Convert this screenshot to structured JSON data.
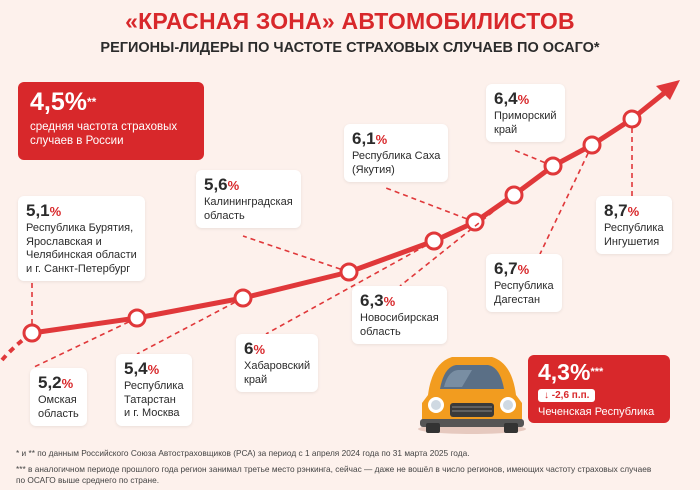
{
  "title": "«КРАСНАЯ ЗОНА» АВТОМОБИЛИСТОВ",
  "subtitle": "РЕГИОНЫ-ЛИДЕРЫ ПО ЧАСТОТЕ СТРАХОВЫХ СЛУЧАЕВ ПО ОСАГО*",
  "average": {
    "value": "4,5%",
    "mark": "**",
    "desc1": "средняя частота страховых",
    "desc2": "случаев в России"
  },
  "chechnya": {
    "value": "4,3%",
    "mark": "***",
    "change": "↓ -2,6 п.п.",
    "name": "Чеченская Республика"
  },
  "colors": {
    "accent": "#d8282b",
    "line": "#e0383a",
    "background": "#fdf1ec"
  },
  "chart_data": {
    "type": "line",
    "title": "«КРАСНАЯ ЗОНА» АВТОМОБИЛИСТОВ",
    "subtitle": "РЕГИОНЫ-ЛИДЕРЫ ПО ЧАСТОТЕ СТРАХОВЫХ СЛУЧАЕВ ПО ОСАГО*",
    "unit": "%",
    "points": [
      {
        "num": "5,1",
        "value": 5.1,
        "lines": [
          "Республика Бурятия,",
          "Ярославская и",
          "Челябинская области",
          "и г. Санкт-Петербург"
        ]
      },
      {
        "num": "5,2",
        "value": 5.2,
        "lines": [
          "Омская",
          "область"
        ]
      },
      {
        "num": "5,4",
        "value": 5.4,
        "lines": [
          "Республика",
          "Татарстан",
          "и г. Москва"
        ]
      },
      {
        "num": "5,6",
        "value": 5.6,
        "lines": [
          "Калининградская",
          "область"
        ]
      },
      {
        "num": "6",
        "value": 6.0,
        "lines": [
          "Хабаровский",
          "край"
        ]
      },
      {
        "num": "6,1",
        "value": 6.1,
        "lines": [
          "Республика Саха",
          "(Якутия)"
        ]
      },
      {
        "num": "6,3",
        "value": 6.3,
        "lines": [
          "Новосибирская",
          "область"
        ]
      },
      {
        "num": "6,4",
        "value": 6.4,
        "lines": [
          "Приморский",
          "край"
        ]
      },
      {
        "num": "6,7",
        "value": 6.7,
        "lines": [
          "Республика",
          "Дагестан"
        ]
      },
      {
        "num": "8,7",
        "value": 8.7,
        "lines": [
          "Республика",
          "Ингушетия"
        ]
      }
    ]
  },
  "footnotes": {
    "f1": "* и ** по данным Российского Союза Автостраховщиков (РСА) за период с 1 апреля 2024 года по 31 марта 2025 года.",
    "f2": "*** в аналогичном периоде прошлого года регион занимал третье место рэнкинга, сейчас — даже не вошёл в число регионов, имеющих частоту страховых случаев",
    "f3": "по ОСАГО выше среднего по стране."
  }
}
